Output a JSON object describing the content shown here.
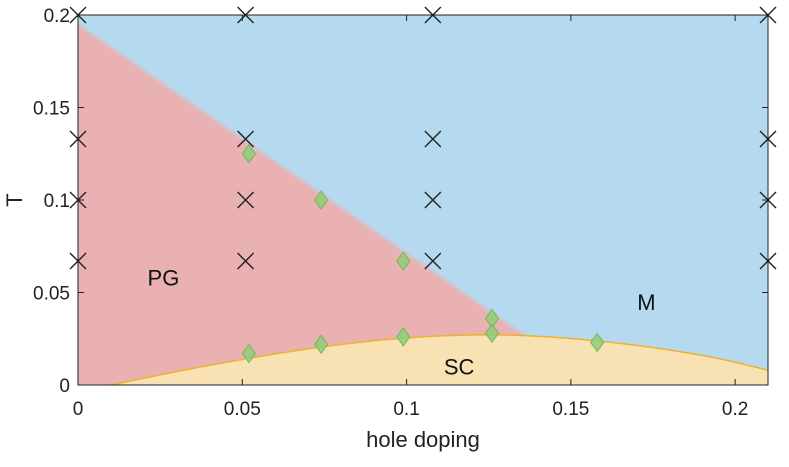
{
  "chart_data": {
    "type": "scatter",
    "title": "",
    "xlabel": "hole doping",
    "ylabel": "T",
    "xlim": [
      0,
      0.21
    ],
    "ylim": [
      0,
      0.2
    ],
    "xticks": [
      0,
      0.05,
      0.1,
      0.15,
      0.2
    ],
    "yticks": [
      0,
      0.05,
      0.1,
      0.15,
      0.2
    ],
    "xtick_labels": [
      "0",
      "0.05",
      "0.1",
      "0.15",
      "0.2"
    ],
    "ytick_labels": [
      "0",
      "0.05",
      "0.1",
      "0.15",
      "0.2"
    ],
    "grid": false,
    "regions": [
      {
        "name": "PG",
        "label": "PG",
        "color": "#e9b1b1",
        "label_at": [
          0.026,
          0.058
        ]
      },
      {
        "name": "M",
        "label": "M",
        "color": "#b5daf0",
        "label_at": [
          0.173,
          0.045
        ]
      },
      {
        "name": "SC",
        "label": "SC",
        "color": "#f8e1b2",
        "label_at": [
          0.116,
          0.01
        ]
      }
    ],
    "boundaries": {
      "pg_m_line": {
        "x": [
          0,
          0.135
        ],
        "y": [
          0.195,
          0.028
        ]
      },
      "sc_dome": {
        "x": [
          0.01,
          0.038,
          0.07,
          0.1,
          0.13,
          0.16,
          0.19,
          0.21
        ],
        "y": [
          0,
          0.01,
          0.0195,
          0.0255,
          0.027,
          0.0235,
          0.016,
          0.008
        ],
        "color": "#f0b030"
      }
    },
    "series": [
      {
        "name": "crosses",
        "marker": "x",
        "color": "#222222",
        "x": [
          0,
          0.051,
          0.108,
          0.21,
          0,
          0.051,
          0.108,
          0.21,
          0,
          0.051,
          0.108,
          0.21,
          0,
          0.051,
          0.108,
          0.21
        ],
        "y": [
          0.2,
          0.2,
          0.2,
          0.2,
          0.133,
          0.133,
          0.133,
          0.133,
          0.1,
          0.1,
          0.1,
          0.1,
          0.067,
          0.067,
          0.067,
          0.067
        ]
      },
      {
        "name": "diamonds",
        "marker": "diamond",
        "color": "#8fcf78",
        "x": [
          0.052,
          0.074,
          0.099,
          0.126,
          0.052,
          0.074,
          0.099,
          0.126,
          0.158
        ],
        "y": [
          0.125,
          0.1,
          0.067,
          0.036,
          0.017,
          0.022,
          0.026,
          0.028,
          0.023
        ]
      }
    ]
  }
}
